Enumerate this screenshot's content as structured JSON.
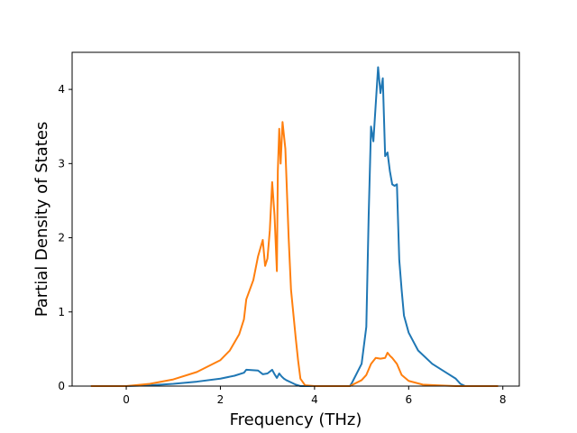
{
  "chart_data": {
    "type": "line",
    "title": "",
    "xlabel": "Frequency (THz)",
    "ylabel": "Partial Density of States",
    "xlim": [
      -1.15,
      8.35
    ],
    "ylim": [
      0,
      4.5
    ],
    "xticks": [
      0,
      2,
      4,
      6,
      8
    ],
    "yticks": [
      0,
      1,
      2,
      3,
      4
    ],
    "grid": false,
    "legend": "none",
    "series": [
      {
        "color": "#1f77b4",
        "x": [
          -0.75,
          0.0,
          0.5,
          1.0,
          1.5,
          2.0,
          2.3,
          2.5,
          2.55,
          2.8,
          2.9,
          3.0,
          3.1,
          3.15,
          3.2,
          3.25,
          3.3,
          3.35,
          3.4,
          3.5,
          3.6,
          3.7,
          3.85,
          4.75,
          4.8,
          5.0,
          5.1,
          5.15,
          5.2,
          5.25,
          5.3,
          5.35,
          5.4,
          5.45,
          5.5,
          5.55,
          5.6,
          5.65,
          5.7,
          5.75,
          5.8,
          5.85,
          5.9,
          6.0,
          6.2,
          6.5,
          6.8,
          7.0,
          7.1,
          7.2,
          7.9
        ],
        "y": [
          0.0,
          0.0,
          0.01,
          0.03,
          0.06,
          0.1,
          0.14,
          0.18,
          0.22,
          0.21,
          0.16,
          0.17,
          0.22,
          0.16,
          0.11,
          0.17,
          0.13,
          0.1,
          0.08,
          0.05,
          0.02,
          0.0,
          0.0,
          0.0,
          0.05,
          0.3,
          0.8,
          2.3,
          3.5,
          3.3,
          3.8,
          4.3,
          3.95,
          4.15,
          3.1,
          3.15,
          2.9,
          2.72,
          2.7,
          2.72,
          1.7,
          1.3,
          0.95,
          0.72,
          0.48,
          0.3,
          0.18,
          0.1,
          0.03,
          0.0,
          0.0
        ]
      },
      {
        "color": "#ff7f0e",
        "x": [
          -0.75,
          0.0,
          0.5,
          1.0,
          1.5,
          2.0,
          2.2,
          2.4,
          2.5,
          2.55,
          2.7,
          2.8,
          2.9,
          2.95,
          3.0,
          3.05,
          3.1,
          3.15,
          3.2,
          3.22,
          3.25,
          3.28,
          3.32,
          3.38,
          3.45,
          3.5,
          3.6,
          3.65,
          3.7,
          3.8,
          4.0,
          4.5,
          4.75,
          5.0,
          5.1,
          5.2,
          5.3,
          5.4,
          5.5,
          5.55,
          5.6,
          5.65,
          5.75,
          5.85,
          6.0,
          6.3,
          6.6,
          7.0,
          7.9
        ],
        "y": [
          0.0,
          0.0,
          0.03,
          0.09,
          0.19,
          0.35,
          0.48,
          0.7,
          0.9,
          1.17,
          1.43,
          1.75,
          1.97,
          1.62,
          1.72,
          2.1,
          2.75,
          2.3,
          1.55,
          2.9,
          3.47,
          3.0,
          3.56,
          3.2,
          2.0,
          1.3,
          0.65,
          0.35,
          0.1,
          0.01,
          0.0,
          0.0,
          0.0,
          0.08,
          0.15,
          0.3,
          0.38,
          0.37,
          0.38,
          0.45,
          0.41,
          0.38,
          0.3,
          0.15,
          0.07,
          0.02,
          0.01,
          0.0,
          0.0
        ]
      }
    ]
  }
}
